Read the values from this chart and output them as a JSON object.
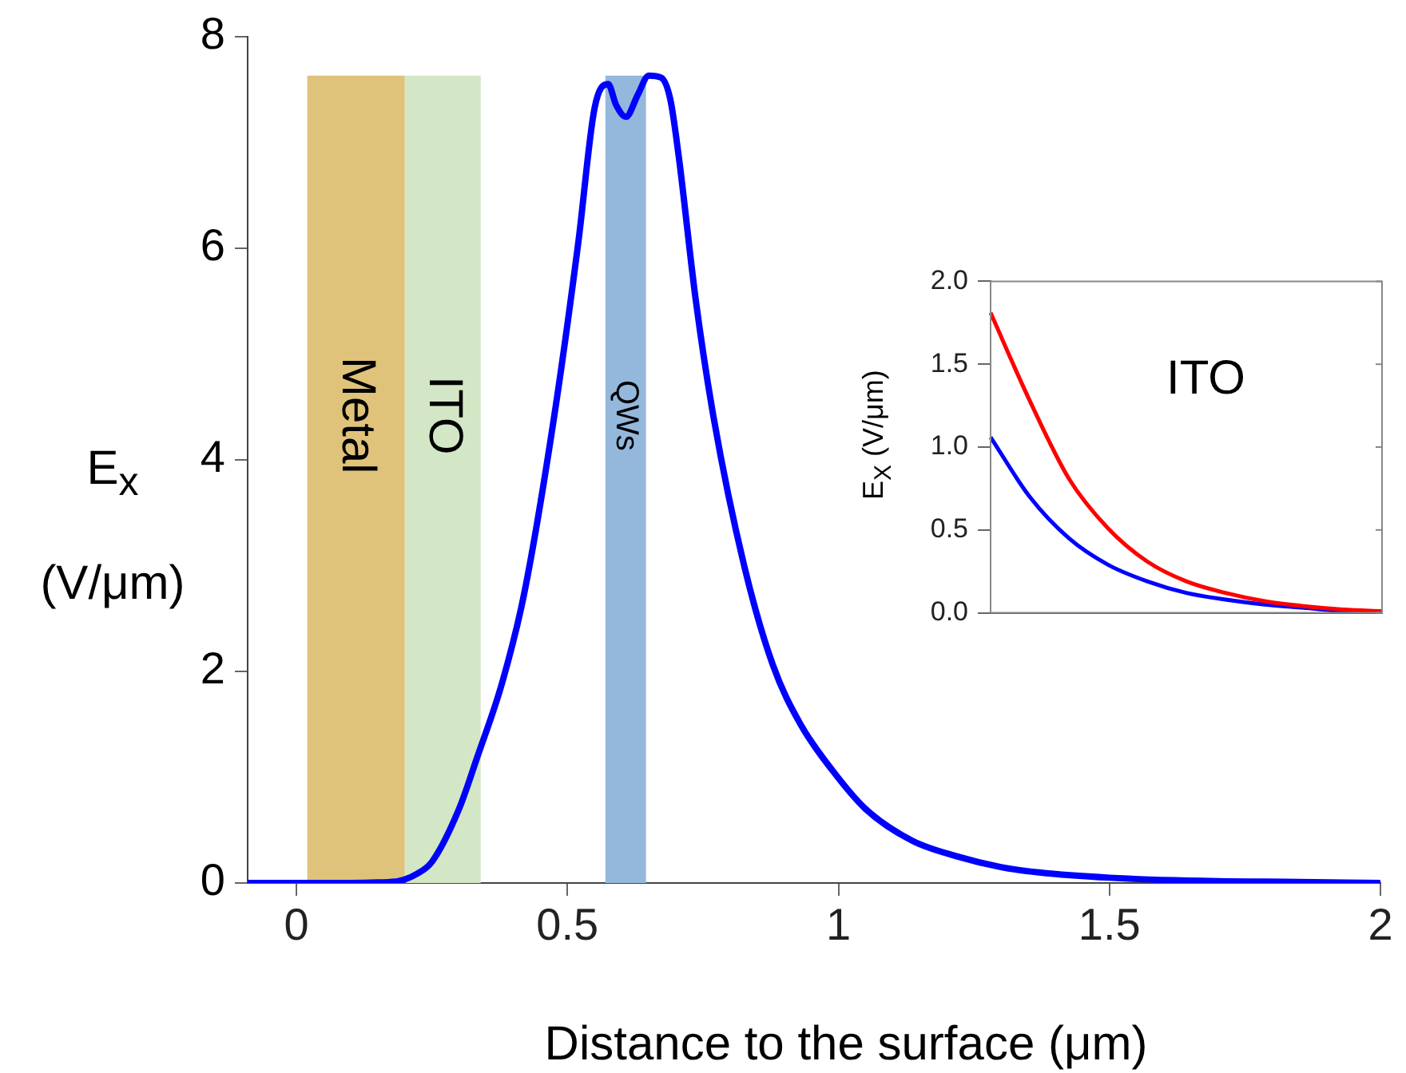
{
  "chart_data": [
    {
      "type": "line",
      "xlabel": "Distance to the surface (μm)",
      "ylabel": "E$_{x}$ (V/μm)",
      "x": [
        -0.09,
        0,
        0.1,
        0.15,
        0.19,
        0.22,
        0.25,
        0.3,
        0.333,
        0.38,
        0.42,
        0.475,
        0.52,
        0.55,
        0.575,
        0.59,
        0.608,
        0.63,
        0.65,
        0.673,
        0.69,
        0.705,
        0.737,
        0.77,
        0.826,
        0.879,
        0.93,
        0.988,
        1.05,
        1.136,
        1.22,
        1.3,
        1.37,
        1.5,
        1.67,
        1.85,
        2
      ],
      "series": [
        {
          "color": "#0000ff",
          "values": [
            0,
            0,
            0,
            0.005,
            0.02,
            0.08,
            0.2,
            0.7,
            1.18,
            1.9,
            2.73,
            4.39,
            6.05,
            7.32,
            7.55,
            7.35,
            7.24,
            7.45,
            7.63,
            7.61,
            7.4,
            6.88,
            5.5,
            4.39,
            3.0,
            2.06,
            1.5,
            1.07,
            0.7,
            0.4,
            0.25,
            0.15,
            0.1,
            0.05,
            0.02,
            0.01,
            0
          ]
        }
      ],
      "xlim": [
        -0.09,
        2
      ],
      "xticks": [
        0,
        0.5,
        1,
        1.5,
        2
      ],
      "ylim": [
        0,
        8
      ],
      "yticks": [
        0,
        2,
        4,
        6,
        8
      ],
      "bands": [
        {
          "axis": "x",
          "from": 0.02,
          "to": 0.2,
          "label": "Metal",
          "color": "#dfc37a"
        },
        {
          "axis": "x",
          "from": 0.2,
          "to": 0.34,
          "label": "ITO",
          "color": "#d3e7c6"
        },
        {
          "axis": "x",
          "from": 0.57,
          "to": 0.645,
          "label": "QWs",
          "color": "#94b8dc"
        }
      ]
    },
    {
      "type": "line",
      "ylabel": "E$_{X}$ (V/μm)",
      "categories": [
        null,
        null,
        null,
        null,
        null,
        null,
        null,
        null,
        null,
        null,
        null
      ],
      "series": [
        {
          "color": "#ff0000",
          "values": [
            1.81,
            1.28,
            0.81,
            0.51,
            0.31,
            0.19,
            0.12,
            0.07,
            0.04,
            0.02,
            0.01
          ]
        },
        {
          "color": "#0000ff",
          "values": [
            1.06,
            0.7,
            0.45,
            0.29,
            0.19,
            0.12,
            0.08,
            0.05,
            0.03,
            0.01,
            0
          ]
        }
      ],
      "ylim": [
        0,
        2
      ],
      "yticks": [
        {
          "value": 0,
          "label": "0.0"
        },
        {
          "value": 0.5,
          "label": "0.5"
        },
        {
          "value": 1,
          "label": "1.0"
        },
        {
          "value": 1.5,
          "label": "1.5"
        },
        {
          "value": 2,
          "label": "2.0"
        }
      ],
      "tick_labels": "y",
      "annotations": [
        "ITO"
      ]
    }
  ]
}
